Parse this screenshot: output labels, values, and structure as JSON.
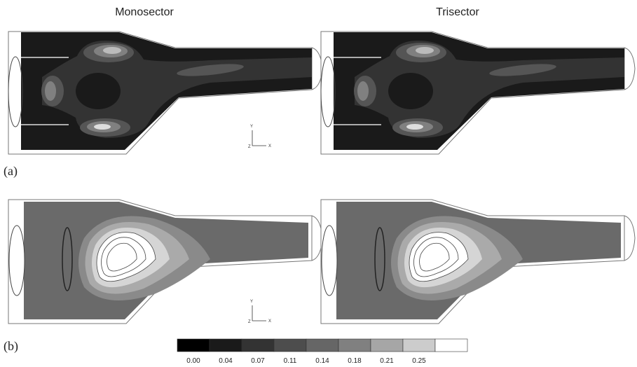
{
  "panels": {
    "left_title": "Monosector",
    "right_title": "Trisector"
  },
  "labels": {
    "a": "(a)",
    "b": "(b)"
  },
  "axes_triad": {
    "y": "Y",
    "x": "X",
    "z": "Z"
  },
  "colorbar": {
    "ticks": [
      "0.00",
      "0.04",
      "0.07",
      "0.11",
      "0.14",
      "0.18",
      "0.21",
      "0.25"
    ]
  }
}
